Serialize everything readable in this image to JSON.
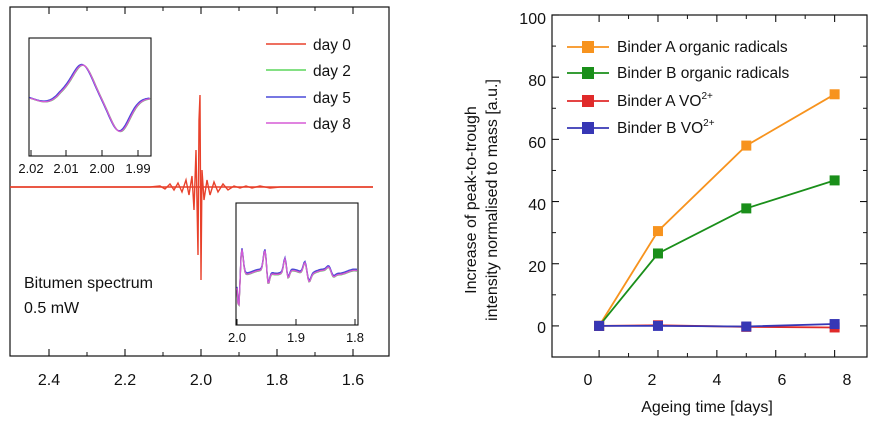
{
  "chart_data": [
    {
      "type": "line",
      "panel": "left",
      "x_ticks": [
        "2.4",
        "2.2",
        "2.0",
        "1.8",
        "1.6"
      ],
      "xlim": [
        2.52,
        1.52
      ],
      "legend": [
        "day 0",
        "day 2",
        "day 5",
        "day 8"
      ],
      "series_colors": [
        "#e8412b",
        "#5bd65b",
        "#4a4ad8",
        "#d65bd6"
      ],
      "annotation": [
        "Bitumen spectrum",
        "0.5 mW"
      ],
      "inset_left": {
        "x_ticks": [
          "2.02",
          "2.01",
          "2.00",
          "1.99"
        ],
        "xlim": [
          2.022,
          1.988
        ]
      },
      "inset_right": {
        "x_ticks": [
          "2.0",
          "1.9",
          "1.8"
        ],
        "xlim": [
          2.0,
          1.79
        ]
      }
    },
    {
      "type": "line",
      "panel": "right",
      "xlabel": "Ageing time [days]",
      "ylabel_line1": "Increase of peak-to-trough",
      "ylabel_line2": "intensity normalised to mass [a.u.]",
      "xlim": [
        -1.6,
        9.1
      ],
      "ylim": [
        -10,
        100
      ],
      "x_ticks": [
        "0",
        "2",
        "4",
        "6",
        "8"
      ],
      "y_ticks": [
        "0",
        "20",
        "40",
        "60",
        "80",
        "100"
      ],
      "x": [
        0,
        2,
        5,
        8
      ],
      "series": [
        {
          "name": "Binder A organic radicals",
          "values": [
            0,
            30.5,
            58,
            74.5
          ],
          "color": "#f7931e"
        },
        {
          "name": "Binder B organic radicals",
          "values": [
            0,
            23.3,
            37.8,
            46.8
          ],
          "color": "#1a8f1a"
        },
        {
          "name": "Binder A VO",
          "sup": "2+",
          "values": [
            0,
            0.2,
            -0.3,
            -0.5
          ],
          "color": "#e02a2a"
        },
        {
          "name": "Binder B VO",
          "sup": "2+",
          "values": [
            0,
            0,
            -0.2,
            0.6
          ],
          "color": "#3737b5"
        }
      ]
    }
  ]
}
